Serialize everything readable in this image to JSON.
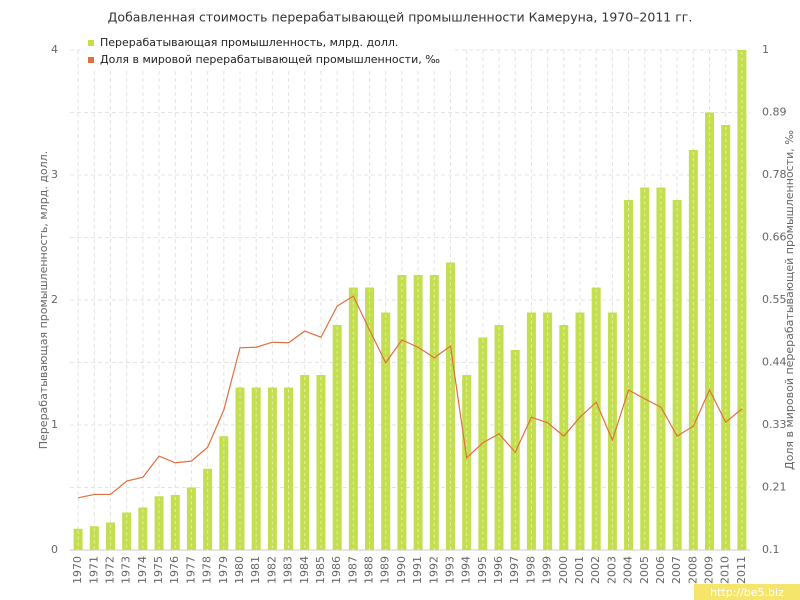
{
  "chart_data": {
    "type": "bar",
    "title": "Добавленная стоимость перерабатывающей промышленности Камеруна, 1970–2011 гг.",
    "y_label": "Перерабатывающая промышленность, млрд. долл.",
    "y2_label": "Доля в мировой перерабатывающей промышленности, ‰",
    "watermark": "http://be5.biz",
    "categories": [
      "1970",
      "1971",
      "1972",
      "1973",
      "1974",
      "1975",
      "1976",
      "1977",
      "1978",
      "1979",
      "1980",
      "1981",
      "1982",
      "1983",
      "1984",
      "1985",
      "1986",
      "1987",
      "1988",
      "1989",
      "1990",
      "1991",
      "1992",
      "1993",
      "1994",
      "1995",
      "1996",
      "1997",
      "1998",
      "1999",
      "2000",
      "2001",
      "2002",
      "2003",
      "2004",
      "2005",
      "2006",
      "2007",
      "2008",
      "2009",
      "2010",
      "2011"
    ],
    "series": [
      {
        "name": "Перерабатывающая промышленность, млрд. долл.",
        "type": "bar",
        "color": "#c3df4f",
        "values": [
          0.17,
          0.19,
          0.22,
          0.3,
          0.34,
          0.43,
          0.44,
          0.5,
          0.65,
          0.91,
          1.3,
          1.3,
          1.3,
          1.3,
          1.4,
          1.4,
          1.8,
          2.1,
          2.1,
          1.9,
          2.2,
          2.2,
          2.2,
          2.3,
          1.4,
          1.7,
          1.8,
          1.6,
          1.9,
          1.9,
          1.8,
          1.9,
          2.1,
          1.9,
          2.8,
          2.9,
          2.9,
          2.8,
          3.2,
          3.5,
          3.4,
          4.0
        ]
      },
      {
        "name": "Доля в мировой перерабатывающей промышленности, ‰",
        "type": "line",
        "axis": "y2",
        "color": "#e0703f",
        "values": [
          0.194,
          0.2,
          0.2,
          0.224,
          0.231,
          0.269,
          0.257,
          0.26,
          0.285,
          0.352,
          0.464,
          0.465,
          0.474,
          0.473,
          0.494,
          0.483,
          0.539,
          0.557,
          0.496,
          0.437,
          0.478,
          0.465,
          0.446,
          0.467,
          0.266,
          0.293,
          0.309,
          0.276,
          0.339,
          0.329,
          0.305,
          0.339,
          0.366,
          0.298,
          0.388,
          0.372,
          0.357,
          0.305,
          0.323,
          0.388,
          0.33,
          0.354
        ]
      }
    ],
    "ylim": [
      0,
      4
    ],
    "yticks": [
      0,
      1,
      2,
      3,
      4
    ],
    "y2lim": [
      0.1,
      1
    ],
    "y2ticks": [
      0.1,
      {
        "value": 0.2125,
        "label": "0.21"
      },
      {
        "value": 0.325,
        "label": "0.33"
      },
      {
        "value": 0.4375,
        "label": "0.44"
      },
      0.55,
      {
        "value": 0.6625,
        "label": "0.66"
      },
      {
        "value": 0.775,
        "label": "0.78"
      },
      {
        "value": 0.8875,
        "label": "0.89"
      },
      1
    ],
    "grid": true,
    "legend": "top-left"
  }
}
